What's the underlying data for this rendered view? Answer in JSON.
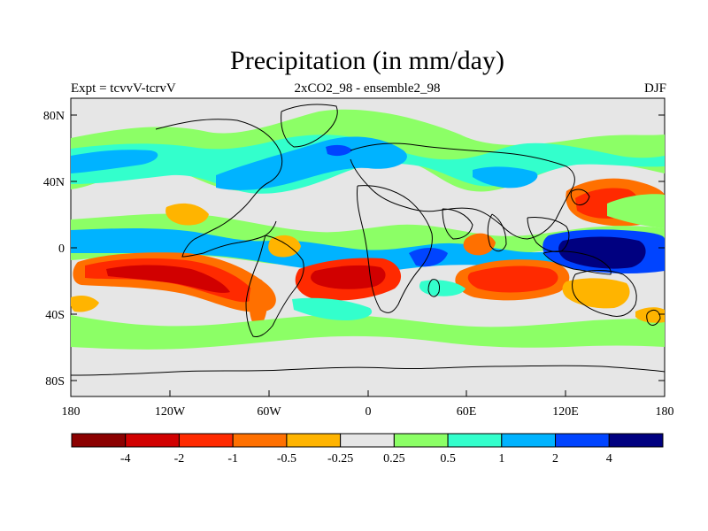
{
  "title": "Precipitation (in mm/day)",
  "left_label": "Expt = tcvvV-tcrvV",
  "center_label": "2xCO2_98 - ensemble2_98",
  "right_label": "DJF",
  "chart_data": {
    "type": "filled contour map",
    "variable": "Precipitation difference",
    "units": "mm/day",
    "experiment": "tcvvV-tcrvV",
    "season": "DJF",
    "xlim": [
      -180,
      180
    ],
    "ylim": [
      -90,
      90
    ],
    "x_tick_labels": [
      "180",
      "120W",
      "60W",
      "0",
      "60E",
      "120E",
      "180"
    ],
    "y_tick_labels": [
      "80N",
      "40N",
      "0",
      "40S",
      "80S"
    ],
    "colorbar": {
      "labels": [
        "-4",
        "-2",
        "-1",
        "-0.5",
        "-0.25",
        "0.25",
        "0.5",
        "1",
        "2",
        "4"
      ],
      "colors": [
        "#8b0000",
        "#d10000",
        "#ff2a00",
        "#ff7000",
        "#ffb400",
        "#e6e6e6",
        "#8cff66",
        "#33ffcc",
        "#00b3ff",
        "#0044ff",
        "#000080"
      ]
    },
    "background_color": "#e6e6e6"
  }
}
